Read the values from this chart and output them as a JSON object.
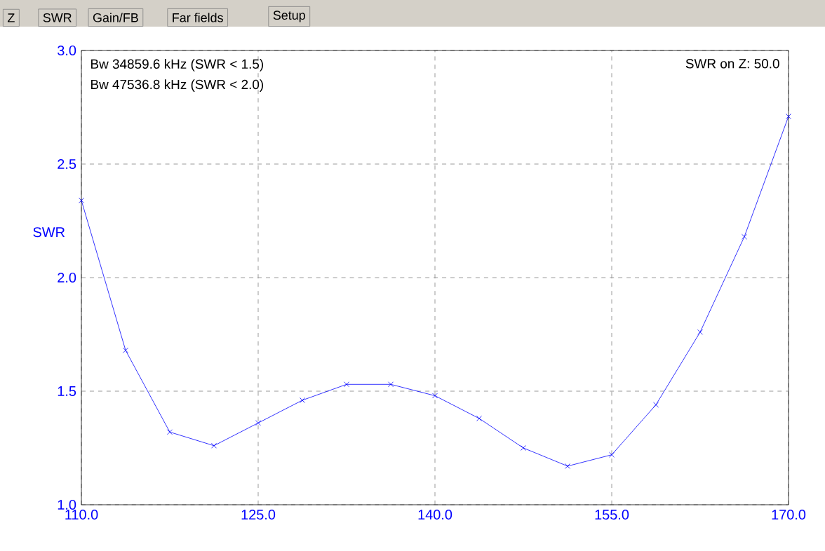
{
  "chart_data": {
    "type": "line",
    "ylabel": "SWR",
    "x": [
      110,
      113.75,
      117.5,
      121.25,
      125,
      128.75,
      132.5,
      136.25,
      140,
      143.75,
      147.5,
      151.25,
      155,
      158.75,
      162.5,
      166.25,
      170
    ],
    "series": [
      {
        "color": "#0000ff",
        "values": [
          2.34,
          1.68,
          1.32,
          1.26,
          1.36,
          1.46,
          1.53,
          1.53,
          1.48,
          1.38,
          1.25,
          1.17,
          1.22,
          1.44,
          1.76,
          2.18,
          2.71
        ]
      }
    ],
    "xlim": [
      110,
      170
    ],
    "ylim": [
      1.0,
      3.0
    ],
    "xticks": [
      {
        "value": 110,
        "label": "110.0"
      },
      {
        "value": 125,
        "label": "125.0"
      },
      {
        "value": 140,
        "label": "140.0"
      },
      {
        "value": 155,
        "label": "155.0"
      },
      {
        "value": 170,
        "label": "170.0"
      }
    ],
    "yticks": [
      {
        "value": 1.0,
        "label": "1.0"
      },
      {
        "value": 1.5,
        "label": "1.5"
      },
      {
        "value": 2.0,
        "label": "2.0"
      },
      {
        "value": 2.5,
        "label": "2.5"
      },
      {
        "value": 3.0,
        "label": "3.0"
      }
    ],
    "grid": true,
    "marker": "cross",
    "line_style": "solid",
    "annotations": [
      "Bw 34859.6 kHz (SWR < 1.5)",
      "Bw 47536.8 kHz (SWR < 2.0)",
      "SWR on Z: 50.0",
      "Z",
      "SWR",
      "Gain/FB",
      "Far fields",
      "Setup"
    ]
  }
}
